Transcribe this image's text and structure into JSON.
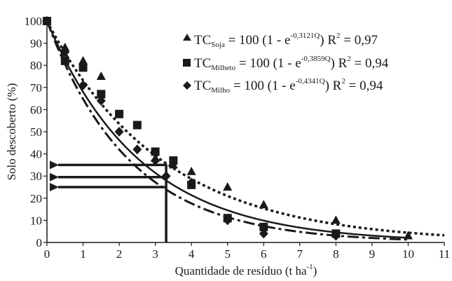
{
  "chart_data": {
    "type": "scatter",
    "xlabel": "Quantidade de resíduo (t ha",
    "xlabel_sup": "-1",
    "xlabel_close": ")",
    "ylabel": "Solo descoberto (%)",
    "xlim": [
      0,
      11
    ],
    "ylim": [
      0,
      100
    ],
    "x_ticks": [
      "0",
      "1",
      "2",
      "3",
      "4",
      "5",
      "6",
      "7",
      "8",
      "9",
      "10",
      "11"
    ],
    "y_ticks": [
      "0",
      "10",
      "20",
      "30",
      "40",
      "50",
      "60",
      "70",
      "80",
      "90",
      "100"
    ],
    "grid": false,
    "legend_position": "top-right",
    "series": [
      {
        "name_prefix": "TC",
        "name_sub": "Soja",
        "eq_prefix": " = 100 (1 - e",
        "eq_exp": "-0,3121Q",
        "eq_mid": ") R",
        "eq_r_sup": "2",
        "eq_r2": " = 0,97",
        "marker": "triangle",
        "line_style": "dotted",
        "k": 0.3121,
        "points": [
          [
            0,
            100
          ],
          [
            0.5,
            88
          ],
          [
            1,
            82
          ],
          [
            1.5,
            75
          ],
          [
            3,
            38
          ],
          [
            3.5,
            35
          ],
          [
            4,
            32
          ],
          [
            5,
            25
          ],
          [
            6,
            17
          ],
          [
            8,
            10
          ],
          [
            10,
            3
          ]
        ]
      },
      {
        "name_prefix": "TC",
        "name_sub": "Milheto",
        "eq_prefix": " = 100 (1 - e",
        "eq_exp": "-0,3859Q",
        "eq_mid": ") R",
        "eq_r_sup": "2",
        "eq_r2": " = 0,94",
        "marker": "square",
        "line_style": "solid",
        "k": 0.3859,
        "points": [
          [
            0,
            100
          ],
          [
            0.5,
            82
          ],
          [
            1,
            79
          ],
          [
            1.5,
            67
          ],
          [
            2,
            58
          ],
          [
            2.5,
            53
          ],
          [
            3,
            41
          ],
          [
            3.5,
            37
          ],
          [
            4,
            26
          ],
          [
            5,
            11
          ],
          [
            6,
            7
          ],
          [
            8,
            4
          ]
        ]
      },
      {
        "name_prefix": "TC",
        "name_sub": "Milho",
        "eq_prefix": " = 100 (1 - e",
        "eq_exp": "-0,4341Q",
        "eq_mid": ") R",
        "eq_r_sup": "2",
        "eq_r2": " = 0,94",
        "marker": "diamond",
        "line_style": "dashdot",
        "k": 0.4341,
        "points": [
          [
            0,
            100
          ],
          [
            0.5,
            86
          ],
          [
            1,
            71
          ],
          [
            1.5,
            64
          ],
          [
            2,
            50
          ],
          [
            2.5,
            42
          ],
          [
            3,
            37
          ],
          [
            3.3,
            30
          ],
          [
            4,
            27
          ],
          [
            5,
            10
          ],
          [
            6,
            4
          ],
          [
            8,
            3
          ]
        ]
      }
    ],
    "annotation_arrows_y": [
      35,
      29.5,
      25
    ],
    "annotation_vline_x": 3.3
  }
}
